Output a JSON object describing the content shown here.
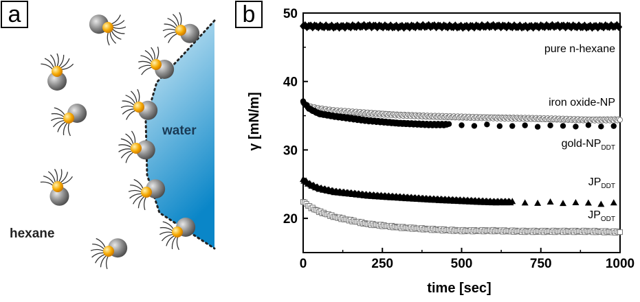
{
  "panel_a": {
    "label": "a",
    "water_label": "water",
    "hexane_label": "hexane",
    "colors": {
      "water_top": "#d8eef8",
      "water_bottom": "#0a86c8",
      "core": "#f5a800",
      "particle": "#8c8c8c"
    }
  },
  "panel_b": {
    "label": "b"
  },
  "chart_data": {
    "type": "scatter",
    "xlabel": "time [sec]",
    "ylabel": "γ [mN/m]",
    "xlim": [
      0,
      1000
    ],
    "ylim": [
      15,
      50
    ],
    "x_ticks": [
      0,
      250,
      500,
      750,
      1000
    ],
    "y_ticks": [
      20,
      30,
      40,
      50
    ],
    "grid": false,
    "series": [
      {
        "name": "pure n-hexane",
        "marker": "diamond-filled",
        "label_parts": [
          "pure n-hexane",
          ""
        ],
        "x": [
          0,
          100,
          200,
          300,
          400,
          500,
          600,
          700,
          800,
          900,
          1000
        ],
        "y": [
          48.1,
          48.0,
          48.1,
          48.0,
          48.1,
          48.0,
          48.1,
          48.0,
          48.1,
          48.0,
          48.1
        ]
      },
      {
        "name": "iron oxide-NP",
        "marker": "circle-open",
        "label_parts": [
          "iron oxide-NP",
          ""
        ],
        "x": [
          0,
          20,
          50,
          100,
          200,
          300,
          400,
          500,
          600,
          700,
          800,
          900,
          1000
        ],
        "y": [
          36.8,
          36.3,
          36.0,
          35.7,
          35.4,
          35.1,
          34.9,
          34.8,
          34.7,
          34.6,
          34.5,
          34.4,
          34.4
        ]
      },
      {
        "name": "gold-NPDDT",
        "marker": "circle-filled",
        "label_parts": [
          "gold-NP",
          "DDT"
        ],
        "x": [
          0,
          20,
          50,
          100,
          200,
          300,
          400,
          460,
          500,
          550,
          600,
          650,
          700,
          750,
          790,
          830,
          870,
          910,
          960,
          1000
        ],
        "y": [
          37.0,
          36.0,
          35.3,
          34.9,
          34.3,
          33.9,
          33.7,
          33.7,
          33.6,
          33.6,
          33.6,
          33.5,
          33.5,
          33.5,
          33.5,
          33.5,
          33.5,
          33.5,
          33.5,
          33.5
        ]
      },
      {
        "name": "JPDDT",
        "marker": "triangle-filled",
        "label_parts": [
          "JP",
          "DDT"
        ],
        "x": [
          0,
          20,
          50,
          100,
          200,
          300,
          400,
          500,
          600,
          660,
          700,
          740,
          780,
          820,
          860,
          900,
          940,
          980
        ],
        "y": [
          25.7,
          25.0,
          24.4,
          23.9,
          23.4,
          23.1,
          22.8,
          22.6,
          22.4,
          22.4,
          22.3,
          22.3,
          22.3,
          22.3,
          22.3,
          22.2,
          22.2,
          22.2
        ]
      },
      {
        "name": "JPODT",
        "marker": "square-open",
        "label_parts": [
          "JP",
          "ODT"
        ],
        "x": [
          0,
          20,
          50,
          100,
          200,
          300,
          400,
          500,
          600,
          700,
          800,
          900,
          1000
        ],
        "y": [
          22.5,
          21.7,
          21.0,
          20.2,
          19.2,
          18.7,
          18.4,
          18.2,
          18.2,
          18.1,
          18.1,
          18.1,
          18.0
        ]
      }
    ]
  }
}
